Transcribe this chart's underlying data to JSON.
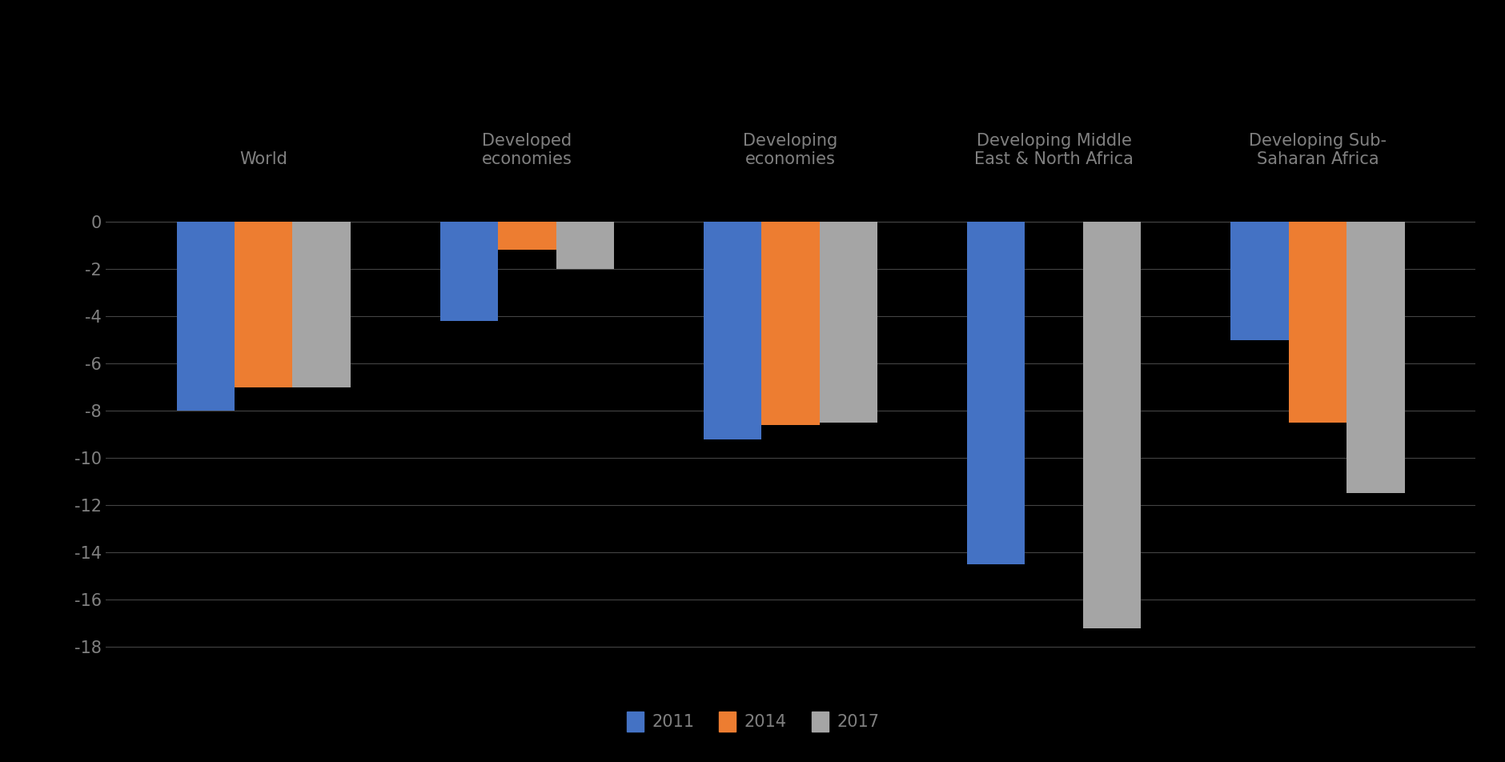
{
  "categories": [
    "World",
    "Developed\neconomies",
    "Developing\neconomies",
    "Developing Middle\nEast & North Africa",
    "Developing Sub-\nSaharan Africa"
  ],
  "series": {
    "2011": [
      -8.0,
      -4.2,
      -9.2,
      -14.5,
      -5.0
    ],
    "2014": [
      -7.0,
      -1.2,
      -8.6,
      0.0,
      -8.5
    ],
    "2017": [
      -7.0,
      -2.0,
      -8.5,
      -17.2,
      -11.5
    ]
  },
  "colors": {
    "2011": "#4472C4",
    "2014": "#ED7D31",
    "2017": "#A5A5A5"
  },
  "ylim": [
    -19,
    1
  ],
  "yticks": [
    0,
    -2,
    -4,
    -6,
    -8,
    -10,
    -12,
    -14,
    -16,
    -18
  ],
  "background_color": "#000000",
  "plot_bg_color": "#000000",
  "text_color": "#808080",
  "grid_color": "#444444",
  "bar_width": 0.22,
  "legend_labels": [
    "2011",
    "2014",
    "2017"
  ]
}
